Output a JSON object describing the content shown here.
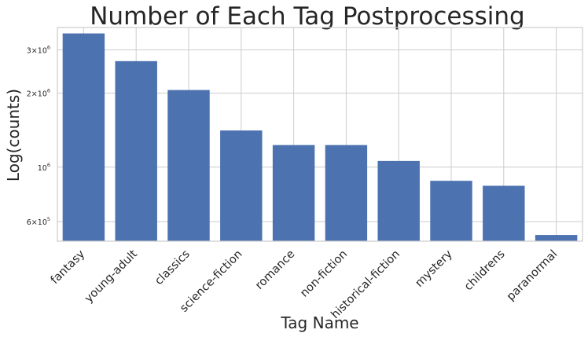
{
  "chart_data": {
    "type": "bar",
    "title": "Number of Each Tag Postprocessing",
    "xlabel": "Tag Name",
    "ylabel": "Log(counts)",
    "yscale": "log",
    "ylim": [
      500000,
      3700000
    ],
    "categories": [
      "fantasy",
      "young-adult",
      "classics",
      "science-fiction",
      "romance",
      "non-fiction",
      "historical-fiction",
      "mystery",
      "childrens",
      "paranormal"
    ],
    "values": [
      3500000,
      2700000,
      2060000,
      1410000,
      1230000,
      1230000,
      1060000,
      880000,
      840000,
      530000
    ],
    "yticks": [
      {
        "value": 600000,
        "mantissa": "6",
        "base": "×10",
        "exp": "5"
      },
      {
        "value": 1000000,
        "mantissa": "",
        "base": "10",
        "exp": "6"
      },
      {
        "value": 2000000,
        "mantissa": "2",
        "base": "×10",
        "exp": "6"
      },
      {
        "value": 3000000,
        "mantissa": "3",
        "base": "×10",
        "exp": "6"
      }
    ],
    "bar_color": "#4c72b0",
    "grid": true,
    "legend": "none"
  }
}
